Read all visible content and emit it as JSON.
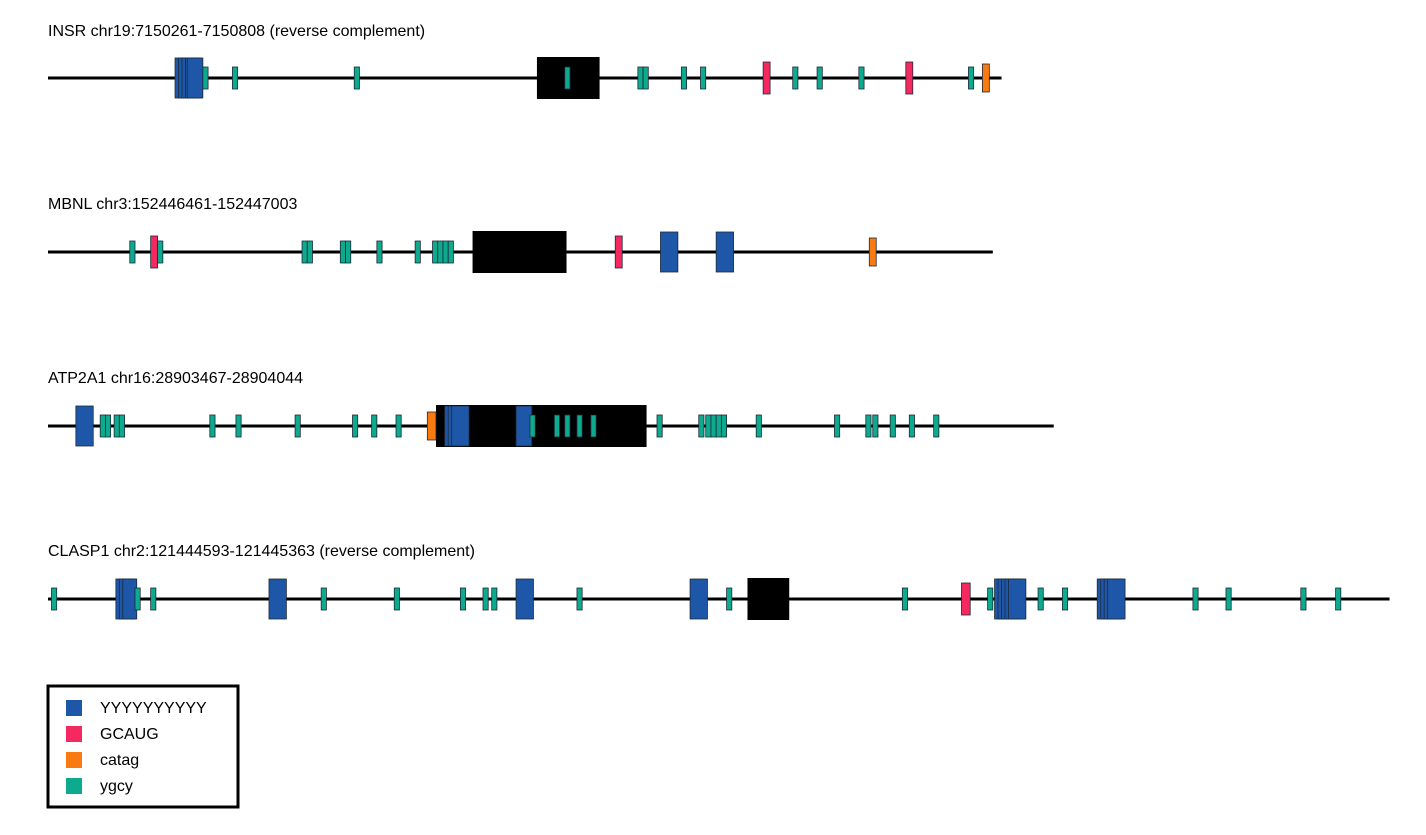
{
  "legend": {
    "items": [
      {
        "key": "Y10",
        "label": "YYYYYYYYYY",
        "color": "#1f57a8"
      },
      {
        "key": "GCAUG",
        "label": "GCAUG",
        "color": "#f5285f"
      },
      {
        "key": "catag",
        "label": "catag",
        "color": "#f97a10"
      },
      {
        "key": "ygcy",
        "label": "ygcy",
        "color": "#0eaa8e"
      }
    ]
  },
  "colors": {
    "exon": "#000000",
    "line": "#000000",
    "Y10": "#1f57a8",
    "GCAUG": "#f5285f",
    "catag": "#f97a10",
    "ygcy": "#0eaa8e"
  },
  "tracks": [
    {
      "title": "INSR chr19:7150261-7150808 (reverse complement)",
      "length": 548,
      "exons": [
        [
          281,
          317
        ]
      ],
      "motifs": [
        {
          "type": "Y10",
          "start": 73,
          "end": 82
        },
        {
          "type": "Y10",
          "start": 75,
          "end": 84
        },
        {
          "type": "Y10",
          "start": 77,
          "end": 86
        },
        {
          "type": "Y10",
          "start": 79,
          "end": 88
        },
        {
          "type": "Y10",
          "start": 80,
          "end": 89
        },
        {
          "type": "ygcy",
          "start": 89,
          "end": 92
        },
        {
          "type": "ygcy",
          "start": 106,
          "end": 109
        },
        {
          "type": "ygcy",
          "start": 176,
          "end": 179
        },
        {
          "type": "ygcy",
          "start": 297,
          "end": 300
        },
        {
          "type": "ygcy",
          "start": 339,
          "end": 342
        },
        {
          "type": "ygcy",
          "start": 342,
          "end": 345
        },
        {
          "type": "ygcy",
          "start": 364,
          "end": 367
        },
        {
          "type": "ygcy",
          "start": 375,
          "end": 378
        },
        {
          "type": "GCAUG",
          "start": 411,
          "end": 415
        },
        {
          "type": "ygcy",
          "start": 428,
          "end": 431
        },
        {
          "type": "ygcy",
          "start": 442,
          "end": 445
        },
        {
          "type": "ygcy",
          "start": 466,
          "end": 469
        },
        {
          "type": "GCAUG",
          "start": 493,
          "end": 497
        },
        {
          "type": "ygcy",
          "start": 529,
          "end": 532
        },
        {
          "type": "catag",
          "start": 537,
          "end": 541
        }
      ]
    },
    {
      "title": "MBNL chr3:152446461-152447003",
      "length": 543,
      "exons": [
        [
          244,
          298
        ]
      ],
      "motifs": [
        {
          "type": "ygcy",
          "start": 47,
          "end": 50
        },
        {
          "type": "GCAUG",
          "start": 59,
          "end": 63
        },
        {
          "type": "ygcy",
          "start": 63,
          "end": 66
        },
        {
          "type": "ygcy",
          "start": 146,
          "end": 149
        },
        {
          "type": "ygcy",
          "start": 149,
          "end": 152
        },
        {
          "type": "ygcy",
          "start": 168,
          "end": 171
        },
        {
          "type": "ygcy",
          "start": 171,
          "end": 174
        },
        {
          "type": "ygcy",
          "start": 189,
          "end": 192
        },
        {
          "type": "ygcy",
          "start": 211,
          "end": 214
        },
        {
          "type": "ygcy",
          "start": 221,
          "end": 224
        },
        {
          "type": "ygcy",
          "start": 224,
          "end": 227
        },
        {
          "type": "ygcy",
          "start": 227,
          "end": 230
        },
        {
          "type": "ygcy",
          "start": 230,
          "end": 233
        },
        {
          "type": "GCAUG",
          "start": 326,
          "end": 330
        },
        {
          "type": "Y10",
          "start": 352,
          "end": 362
        },
        {
          "type": "Y10",
          "start": 384,
          "end": 394
        },
        {
          "type": "catag",
          "start": 472,
          "end": 476
        }
      ]
    },
    {
      "title": "ATP2A1 chr16:28903467-28904044",
      "length": 578,
      "exons": [
        [
          223,
          344
        ]
      ],
      "motifs": [
        {
          "type": "Y10",
          "start": 16,
          "end": 26
        },
        {
          "type": "ygcy",
          "start": 30,
          "end": 33
        },
        {
          "type": "ygcy",
          "start": 33,
          "end": 36
        },
        {
          "type": "ygcy",
          "start": 38,
          "end": 41
        },
        {
          "type": "ygcy",
          "start": 41,
          "end": 44
        },
        {
          "type": "ygcy",
          "start": 93,
          "end": 96
        },
        {
          "type": "ygcy",
          "start": 108,
          "end": 111
        },
        {
          "type": "ygcy",
          "start": 142,
          "end": 145
        },
        {
          "type": "ygcy",
          "start": 175,
          "end": 178
        },
        {
          "type": "ygcy",
          "start": 186,
          "end": 189
        },
        {
          "type": "ygcy",
          "start": 200,
          "end": 203
        },
        {
          "type": "catag",
          "start": 218,
          "end": 223
        },
        {
          "type": "Y10",
          "start": 228,
          "end": 238
        },
        {
          "type": "Y10",
          "start": 230,
          "end": 240
        },
        {
          "type": "Y10",
          "start": 232,
          "end": 242
        },
        {
          "type": "Y10",
          "start": 269,
          "end": 278
        },
        {
          "type": "ygcy",
          "start": 277,
          "end": 280
        },
        {
          "type": "ygcy",
          "start": 291,
          "end": 294
        },
        {
          "type": "ygcy",
          "start": 297,
          "end": 300
        },
        {
          "type": "ygcy",
          "start": 304,
          "end": 307
        },
        {
          "type": "ygcy",
          "start": 312,
          "end": 315
        },
        {
          "type": "ygcy",
          "start": 350,
          "end": 353
        },
        {
          "type": "ygcy",
          "start": 374,
          "end": 377
        },
        {
          "type": "ygcy",
          "start": 378,
          "end": 381
        },
        {
          "type": "ygcy",
          "start": 381,
          "end": 384
        },
        {
          "type": "ygcy",
          "start": 384,
          "end": 387
        },
        {
          "type": "ygcy",
          "start": 387,
          "end": 390
        },
        {
          "type": "ygcy",
          "start": 407,
          "end": 410
        },
        {
          "type": "ygcy",
          "start": 452,
          "end": 455
        },
        {
          "type": "ygcy",
          "start": 470,
          "end": 473
        },
        {
          "type": "ygcy",
          "start": 474,
          "end": 477
        },
        {
          "type": "ygcy",
          "start": 484,
          "end": 487
        },
        {
          "type": "ygcy",
          "start": 495,
          "end": 498
        },
        {
          "type": "ygcy",
          "start": 509,
          "end": 512
        }
      ]
    },
    {
      "title": "CLASP1 chr2:121444593-121445363 (reverse complement)",
      "length": 771,
      "exons": [
        [
          402,
          426
        ]
      ],
      "motifs": [
        {
          "type": "ygcy",
          "start": 2,
          "end": 5
        },
        {
          "type": "Y10",
          "start": 39,
          "end": 49
        },
        {
          "type": "Y10",
          "start": 41,
          "end": 50
        },
        {
          "type": "Y10",
          "start": 43,
          "end": 51
        },
        {
          "type": "ygcy",
          "start": 50,
          "end": 53
        },
        {
          "type": "ygcy",
          "start": 59,
          "end": 62
        },
        {
          "type": "Y10",
          "start": 127,
          "end": 137
        },
        {
          "type": "ygcy",
          "start": 157,
          "end": 160
        },
        {
          "type": "ygcy",
          "start": 199,
          "end": 202
        },
        {
          "type": "ygcy",
          "start": 237,
          "end": 240
        },
        {
          "type": "ygcy",
          "start": 250,
          "end": 253
        },
        {
          "type": "ygcy",
          "start": 255,
          "end": 258
        },
        {
          "type": "Y10",
          "start": 269,
          "end": 279
        },
        {
          "type": "ygcy",
          "start": 304,
          "end": 307
        },
        {
          "type": "Y10",
          "start": 369,
          "end": 379
        },
        {
          "type": "ygcy",
          "start": 390,
          "end": 393
        },
        {
          "type": "ygcy",
          "start": 491,
          "end": 494
        },
        {
          "type": "GCAUG",
          "start": 525,
          "end": 530
        },
        {
          "type": "ygcy",
          "start": 540,
          "end": 543
        },
        {
          "type": "Y10",
          "start": 544,
          "end": 554
        },
        {
          "type": "Y10",
          "start": 546,
          "end": 556
        },
        {
          "type": "Y10",
          "start": 548,
          "end": 558
        },
        {
          "type": "Y10",
          "start": 550,
          "end": 560
        },
        {
          "type": "Y10",
          "start": 552,
          "end": 562
        },
        {
          "type": "ygcy",
          "start": 569,
          "end": 572
        },
        {
          "type": "ygcy",
          "start": 583,
          "end": 586
        },
        {
          "type": "Y10",
          "start": 603,
          "end": 613
        },
        {
          "type": "Y10",
          "start": 605,
          "end": 615
        },
        {
          "type": "Y10",
          "start": 607,
          "end": 617
        },
        {
          "type": "Y10",
          "start": 609,
          "end": 619
        },
        {
          "type": "ygcy",
          "start": 658,
          "end": 661
        },
        {
          "type": "ygcy",
          "start": 677,
          "end": 680
        },
        {
          "type": "ygcy",
          "start": 720,
          "end": 723
        },
        {
          "type": "ygcy",
          "start": 740,
          "end": 743
        }
      ]
    }
  ]
}
